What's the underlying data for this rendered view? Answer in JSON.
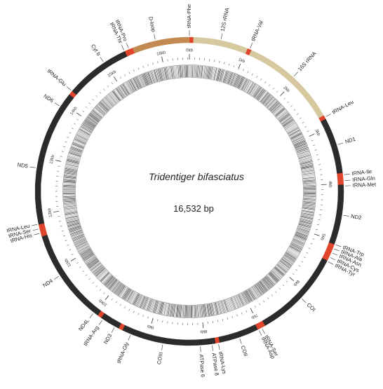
{
  "title": {
    "species": "Tridentiger bifasciatus",
    "size": "16,532 bp"
  },
  "genome_length": 16532,
  "colors": {
    "protein": "#2b2b2b",
    "trna": "#e0452b",
    "rrna": "#d6c9a0",
    "dloop": "#c28a50",
    "gc_track": "#555555"
  },
  "features": [
    {
      "name": "tRNA-Phe",
      "type": "trna",
      "start": 0,
      "end": 70,
      "label_pos": 0
    },
    {
      "name": "12S rRNA",
      "type": "rrna",
      "start": 70,
      "end": 1020,
      "label_pos": 540
    },
    {
      "name": "tRNA-Val",
      "type": "trna",
      "start": 1020,
      "end": 1090,
      "label_pos": 1055
    },
    {
      "name": "16S rRNA",
      "type": "rrna",
      "start": 1090,
      "end": 2780,
      "label_pos": 1940
    },
    {
      "name": "tRNA-Leu",
      "type": "trna",
      "start": 2780,
      "end": 2850,
      "label_pos": 2815
    },
    {
      "name": "ND1",
      "type": "protein",
      "start": 2850,
      "end": 3820,
      "label_pos": 3330
    },
    {
      "name": "tRNA-Ile",
      "type": "trna",
      "start": 3820,
      "end": 3880,
      "label_pos": 3850
    },
    {
      "name": "tRNA-Gln",
      "type": "trna",
      "start": 3880,
      "end": 3950,
      "label_pos": 3950
    },
    {
      "name": "tRNA-Met",
      "type": "trna",
      "start": 3950,
      "end": 4020,
      "label_pos": 4040
    },
    {
      "name": "ND2",
      "type": "protein",
      "start": 4020,
      "end": 5060,
      "label_pos": 4540
    },
    {
      "name": "tRNA-Trp",
      "type": "trna",
      "start": 5060,
      "end": 5120,
      "label_pos": 5055
    },
    {
      "name": "tRNA-Ala",
      "type": "trna",
      "start": 5120,
      "end": 5180,
      "label_pos": 5130
    },
    {
      "name": "tRNA-Asn",
      "type": "trna",
      "start": 5180,
      "end": 5240,
      "label_pos": 5205
    },
    {
      "name": "tRNA-Cys",
      "type": "trna",
      "start": 5240,
      "end": 5300,
      "label_pos": 5290
    },
    {
      "name": "tRNA-Tyr",
      "type": "trna",
      "start": 5300,
      "end": 5360,
      "label_pos": 5370
    },
    {
      "name": "COI",
      "type": "protein",
      "start": 5360,
      "end": 6920,
      "label_pos": 6140
    },
    {
      "name": "tRNA-Ser",
      "type": "trna",
      "start": 6920,
      "end": 6990,
      "label_pos": 6985
    },
    {
      "name": "tRNA-Asp",
      "type": "trna",
      "start": 6990,
      "end": 7060,
      "label_pos": 7045
    },
    {
      "name": "COII",
      "type": "protein",
      "start": 7060,
      "end": 7750,
      "label_pos": 7400
    },
    {
      "name": "tRNA-Lys",
      "type": "trna",
      "start": 7750,
      "end": 7820,
      "label_pos": 7770
    },
    {
      "name": "ATPase 8",
      "type": "protein",
      "start": 7820,
      "end": 7990,
      "label_pos": 7880
    },
    {
      "name": "ATPase 6",
      "type": "protein",
      "start": 7990,
      "end": 8670,
      "label_pos": 8080
    },
    {
      "name": "COIII",
      "type": "protein",
      "start": 8670,
      "end": 9450,
      "label_pos": 8720
    },
    {
      "name": "tRNA-Gly",
      "type": "trna",
      "start": 9450,
      "end": 9520,
      "label_pos": 9290
    },
    {
      "name": "ND3",
      "type": "protein",
      "start": 9520,
      "end": 9870,
      "label_pos": 9590
    },
    {
      "name": "tRNA-Arg",
      "type": "trna",
      "start": 9870,
      "end": 9940,
      "label_pos": 9830
    },
    {
      "name": "ND4L",
      "type": "protein",
      "start": 9940,
      "end": 10240,
      "label_pos": 10020
    },
    {
      "name": "ND4",
      "type": "protein",
      "start": 10240,
      "end": 11620,
      "label_pos": 10880
    },
    {
      "name": "tRNA-His",
      "type": "trna",
      "start": 11620,
      "end": 11690,
      "label_pos": 11680
    },
    {
      "name": "tRNA-Ser",
      "type": "trna",
      "start": 11690,
      "end": 11760,
      "label_pos": 11755
    },
    {
      "name": "tRNA-Leu",
      "type": "trna",
      "start": 11760,
      "end": 11830,
      "label_pos": 11835
    },
    {
      "name": "ND5",
      "type": "protein",
      "start": 11830,
      "end": 13670,
      "label_pos": 12800
    },
    {
      "name": "ND6",
      "type": "protein",
      "start": 13670,
      "end": 14190,
      "label_pos": 13930
    },
    {
      "name": "tRNA-Glu",
      "type": "trna",
      "start": 14190,
      "end": 14260,
      "label_pos": 14260
    },
    {
      "name": "Cyt b",
      "type": "protein",
      "start": 14260,
      "end": 15400,
      "label_pos": 14990
    },
    {
      "name": "tRNA-Thr",
      "type": "trna",
      "start": 15400,
      "end": 15470,
      "label_pos": 15390
    },
    {
      "name": "tRNA-Pro",
      "type": "trna",
      "start": 15470,
      "end": 15540,
      "label_pos": 15475
    },
    {
      "name": "D-loop",
      "type": "dloop",
      "start": 15540,
      "end": 16532,
      "label_pos": 15950
    }
  ],
  "kb_ticks": [
    "0kb",
    "1kb",
    "2kb",
    "3kb",
    "4kb",
    "5kb",
    "6kb",
    "7kb",
    "8kb",
    "9kb",
    "10kb",
    "11kb",
    "12kb",
    "13kb",
    "14kb",
    "15kb",
    "16kb"
  ]
}
